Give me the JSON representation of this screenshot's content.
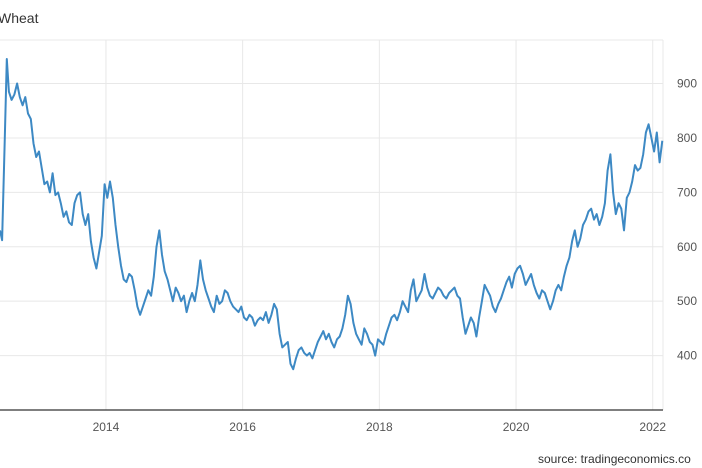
{
  "chart_data": {
    "type": "line",
    "title": "Wheat",
    "source": "source: tradingeconomics.co",
    "xlabel": "",
    "ylabel": "",
    "xlim": [
      2012.45,
      2022.15
    ],
    "ylim": [
      300,
      980
    ],
    "x_ticks": [
      "2014",
      "2016",
      "2018",
      "2020",
      "2022"
    ],
    "y_ticks": [
      "400",
      "500",
      "600",
      "700",
      "800",
      "900"
    ],
    "grid": true,
    "colors": {
      "line": "#3d89c4",
      "grid": "#e8e8e8",
      "axis": "#333333"
    },
    "series": [
      {
        "points": [
          [
            2012.45,
            630
          ],
          [
            2012.48,
            612
          ],
          [
            2012.52,
            800
          ],
          [
            2012.55,
            945
          ],
          [
            2012.58,
            885
          ],
          [
            2012.62,
            870
          ],
          [
            2012.66,
            880
          ],
          [
            2012.7,
            900
          ],
          [
            2012.74,
            875
          ],
          [
            2012.78,
            860
          ],
          [
            2012.82,
            875
          ],
          [
            2012.86,
            845
          ],
          [
            2012.9,
            835
          ],
          [
            2012.94,
            790
          ],
          [
            2012.98,
            765
          ],
          [
            2013.02,
            775
          ],
          [
            2013.06,
            745
          ],
          [
            2013.1,
            715
          ],
          [
            2013.14,
            720
          ],
          [
            2013.18,
            700
          ],
          [
            2013.22,
            735
          ],
          [
            2013.26,
            695
          ],
          [
            2013.3,
            700
          ],
          [
            2013.34,
            680
          ],
          [
            2013.38,
            655
          ],
          [
            2013.42,
            665
          ],
          [
            2013.46,
            645
          ],
          [
            2013.5,
            640
          ],
          [
            2013.54,
            680
          ],
          [
            2013.58,
            695
          ],
          [
            2013.62,
            700
          ],
          [
            2013.66,
            660
          ],
          [
            2013.7,
            640
          ],
          [
            2013.74,
            660
          ],
          [
            2013.78,
            610
          ],
          [
            2013.82,
            580
          ],
          [
            2013.86,
            560
          ],
          [
            2013.9,
            590
          ],
          [
            2013.94,
            620
          ],
          [
            2013.98,
            715
          ],
          [
            2014.02,
            690
          ],
          [
            2014.06,
            720
          ],
          [
            2014.1,
            690
          ],
          [
            2014.14,
            640
          ],
          [
            2014.18,
            600
          ],
          [
            2014.22,
            565
          ],
          [
            2014.26,
            540
          ],
          [
            2014.3,
            535
          ],
          [
            2014.34,
            550
          ],
          [
            2014.38,
            545
          ],
          [
            2014.42,
            520
          ],
          [
            2014.46,
            490
          ],
          [
            2014.5,
            475
          ],
          [
            2014.54,
            490
          ],
          [
            2014.58,
            505
          ],
          [
            2014.62,
            520
          ],
          [
            2014.66,
            510
          ],
          [
            2014.7,
            545
          ],
          [
            2014.74,
            600
          ],
          [
            2014.78,
            630
          ],
          [
            2014.82,
            585
          ],
          [
            2014.86,
            555
          ],
          [
            2014.9,
            540
          ],
          [
            2014.94,
            520
          ],
          [
            2014.98,
            500
          ],
          [
            2015.02,
            525
          ],
          [
            2015.06,
            515
          ],
          [
            2015.1,
            500
          ],
          [
            2015.14,
            510
          ],
          [
            2015.18,
            480
          ],
          [
            2015.22,
            500
          ],
          [
            2015.26,
            515
          ],
          [
            2015.3,
            500
          ],
          [
            2015.34,
            530
          ],
          [
            2015.38,
            575
          ],
          [
            2015.42,
            540
          ],
          [
            2015.46,
            520
          ],
          [
            2015.5,
            505
          ],
          [
            2015.54,
            490
          ],
          [
            2015.58,
            480
          ],
          [
            2015.62,
            510
          ],
          [
            2015.66,
            495
          ],
          [
            2015.7,
            500
          ],
          [
            2015.74,
            520
          ],
          [
            2015.78,
            515
          ],
          [
            2015.82,
            500
          ],
          [
            2015.86,
            490
          ],
          [
            2015.9,
            485
          ],
          [
            2015.94,
            480
          ],
          [
            2015.98,
            490
          ],
          [
            2016.02,
            470
          ],
          [
            2016.06,
            465
          ],
          [
            2016.1,
            475
          ],
          [
            2016.14,
            470
          ],
          [
            2016.18,
            455
          ],
          [
            2016.22,
            465
          ],
          [
            2016.26,
            470
          ],
          [
            2016.3,
            465
          ],
          [
            2016.34,
            480
          ],
          [
            2016.38,
            460
          ],
          [
            2016.42,
            475
          ],
          [
            2016.46,
            495
          ],
          [
            2016.5,
            485
          ],
          [
            2016.54,
            440
          ],
          [
            2016.58,
            415
          ],
          [
            2016.62,
            420
          ],
          [
            2016.66,
            425
          ],
          [
            2016.7,
            385
          ],
          [
            2016.74,
            375
          ],
          [
            2016.78,
            395
          ],
          [
            2016.82,
            410
          ],
          [
            2016.86,
            415
          ],
          [
            2016.9,
            405
          ],
          [
            2016.94,
            400
          ],
          [
            2016.98,
            405
          ],
          [
            2017.02,
            395
          ],
          [
            2017.06,
            410
          ],
          [
            2017.1,
            425
          ],
          [
            2017.14,
            435
          ],
          [
            2017.18,
            445
          ],
          [
            2017.22,
            430
          ],
          [
            2017.26,
            440
          ],
          [
            2017.3,
            425
          ],
          [
            2017.34,
            415
          ],
          [
            2017.38,
            430
          ],
          [
            2017.42,
            435
          ],
          [
            2017.46,
            450
          ],
          [
            2017.5,
            475
          ],
          [
            2017.54,
            510
          ],
          [
            2017.58,
            495
          ],
          [
            2017.62,
            460
          ],
          [
            2017.66,
            440
          ],
          [
            2017.7,
            430
          ],
          [
            2017.74,
            420
          ],
          [
            2017.78,
            450
          ],
          [
            2017.82,
            440
          ],
          [
            2017.86,
            425
          ],
          [
            2017.9,
            420
          ],
          [
            2017.94,
            400
          ],
          [
            2017.98,
            430
          ],
          [
            2018.02,
            425
          ],
          [
            2018.06,
            420
          ],
          [
            2018.1,
            440
          ],
          [
            2018.14,
            455
          ],
          [
            2018.18,
            470
          ],
          [
            2018.22,
            475
          ],
          [
            2018.26,
            465
          ],
          [
            2018.3,
            480
          ],
          [
            2018.34,
            500
          ],
          [
            2018.38,
            490
          ],
          [
            2018.42,
            480
          ],
          [
            2018.46,
            520
          ],
          [
            2018.5,
            540
          ],
          [
            2018.54,
            500
          ],
          [
            2018.58,
            510
          ],
          [
            2018.62,
            520
          ],
          [
            2018.66,
            550
          ],
          [
            2018.7,
            525
          ],
          [
            2018.74,
            510
          ],
          [
            2018.78,
            505
          ],
          [
            2018.82,
            515
          ],
          [
            2018.86,
            525
          ],
          [
            2018.9,
            520
          ],
          [
            2018.94,
            510
          ],
          [
            2018.98,
            505
          ],
          [
            2019.02,
            515
          ],
          [
            2019.06,
            520
          ],
          [
            2019.1,
            525
          ],
          [
            2019.14,
            510
          ],
          [
            2019.18,
            505
          ],
          [
            2019.22,
            470
          ],
          [
            2019.26,
            440
          ],
          [
            2019.3,
            455
          ],
          [
            2019.34,
            470
          ],
          [
            2019.38,
            460
          ],
          [
            2019.42,
            435
          ],
          [
            2019.46,
            470
          ],
          [
            2019.5,
            500
          ],
          [
            2019.54,
            530
          ],
          [
            2019.58,
            520
          ],
          [
            2019.62,
            510
          ],
          [
            2019.66,
            490
          ],
          [
            2019.7,
            480
          ],
          [
            2019.74,
            495
          ],
          [
            2019.78,
            505
          ],
          [
            2019.82,
            520
          ],
          [
            2019.86,
            535
          ],
          [
            2019.9,
            545
          ],
          [
            2019.94,
            525
          ],
          [
            2019.98,
            550
          ],
          [
            2020.02,
            560
          ],
          [
            2020.06,
            565
          ],
          [
            2020.1,
            550
          ],
          [
            2020.14,
            530
          ],
          [
            2020.18,
            540
          ],
          [
            2020.22,
            550
          ],
          [
            2020.26,
            530
          ],
          [
            2020.3,
            515
          ],
          [
            2020.34,
            505
          ],
          [
            2020.38,
            520
          ],
          [
            2020.42,
            515
          ],
          [
            2020.46,
            500
          ],
          [
            2020.5,
            485
          ],
          [
            2020.54,
            500
          ],
          [
            2020.58,
            520
          ],
          [
            2020.62,
            530
          ],
          [
            2020.66,
            520
          ],
          [
            2020.7,
            545
          ],
          [
            2020.74,
            565
          ],
          [
            2020.78,
            580
          ],
          [
            2020.82,
            610
          ],
          [
            2020.86,
            630
          ],
          [
            2020.9,
            600
          ],
          [
            2020.94,
            615
          ],
          [
            2020.98,
            640
          ],
          [
            2021.02,
            650
          ],
          [
            2021.06,
            665
          ],
          [
            2021.1,
            670
          ],
          [
            2021.14,
            650
          ],
          [
            2021.18,
            660
          ],
          [
            2021.22,
            640
          ],
          [
            2021.26,
            655
          ],
          [
            2021.3,
            680
          ],
          [
            2021.34,
            740
          ],
          [
            2021.38,
            770
          ],
          [
            2021.42,
            700
          ],
          [
            2021.46,
            660
          ],
          [
            2021.5,
            680
          ],
          [
            2021.54,
            670
          ],
          [
            2021.58,
            630
          ],
          [
            2021.62,
            690
          ],
          [
            2021.66,
            700
          ],
          [
            2021.7,
            720
          ],
          [
            2021.74,
            750
          ],
          [
            2021.78,
            740
          ],
          [
            2021.82,
            745
          ],
          [
            2021.86,
            770
          ],
          [
            2021.9,
            810
          ],
          [
            2021.94,
            825
          ],
          [
            2021.98,
            800
          ],
          [
            2022.02,
            775
          ],
          [
            2022.06,
            810
          ],
          [
            2022.1,
            755
          ],
          [
            2022.14,
            795
          ]
        ]
      }
    ]
  }
}
